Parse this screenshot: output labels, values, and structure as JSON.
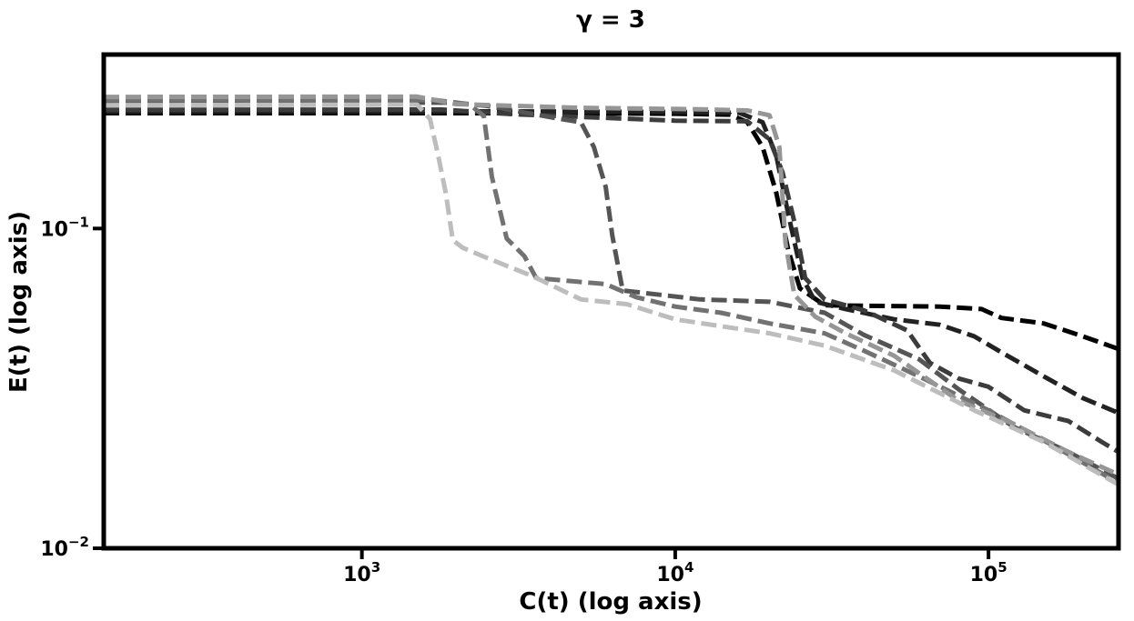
{
  "chart_data": {
    "type": "line",
    "title": "γ = 3",
    "xlabel": "C(t) (log axis)",
    "ylabel": "E(t) (log axis)",
    "xscale": "log",
    "yscale": "log",
    "xlim": [
      150,
      260000
    ],
    "ylim": [
      0.01,
      0.35
    ],
    "grid": false,
    "legend": "none",
    "line_style": "dashed",
    "xticks": [
      {
        "value": 1000,
        "base": "10",
        "exp": "3"
      },
      {
        "value": 10000,
        "base": "10",
        "exp": "4"
      },
      {
        "value": 100000,
        "base": "10",
        "exp": "5"
      }
    ],
    "yticks": [
      {
        "value": 0.1,
        "base": "10",
        "exp": "−1"
      },
      {
        "value": 0.01,
        "base": "10",
        "exp": "−2"
      }
    ],
    "series": [
      {
        "color": "#000000",
        "points": [
          [
            150,
            0.2295
          ],
          [
            3000,
            0.2295
          ],
          [
            10000,
            0.2285
          ],
          [
            15000,
            0.227
          ],
          [
            17000,
            0.215
          ],
          [
            19000,
            0.18
          ],
          [
            21000,
            0.13
          ],
          [
            23000,
            0.085
          ],
          [
            25000,
            0.065
          ],
          [
            30000,
            0.0575
          ],
          [
            70000,
            0.057
          ],
          [
            95000,
            0.056
          ],
          [
            110000,
            0.0525
          ],
          [
            150000,
            0.0505
          ],
          [
            200000,
            0.046
          ],
          [
            260000,
            0.042
          ]
        ]
      },
      {
        "color": "#222222",
        "points": [
          [
            150,
            0.2325
          ],
          [
            3000,
            0.2325
          ],
          [
            10000,
            0.2315
          ],
          [
            16000,
            0.23
          ],
          [
            19000,
            0.215
          ],
          [
            21000,
            0.17
          ],
          [
            23000,
            0.11
          ],
          [
            25500,
            0.07
          ],
          [
            28000,
            0.059
          ],
          [
            35000,
            0.056
          ],
          [
            50000,
            0.052
          ],
          [
            70000,
            0.05
          ],
          [
            90000,
            0.046
          ],
          [
            110000,
            0.041
          ],
          [
            150000,
            0.0345
          ],
          [
            200000,
            0.0295
          ],
          [
            260000,
            0.0265
          ]
        ]
      },
      {
        "color": "#3c3c3c",
        "points": [
          [
            150,
            0.235
          ],
          [
            1800,
            0.2355
          ],
          [
            3000,
            0.228
          ],
          [
            10000,
            0.2175
          ],
          [
            17000,
            0.2165
          ],
          [
            20000,
            0.19
          ],
          [
            22000,
            0.15
          ],
          [
            24000,
            0.105
          ],
          [
            26000,
            0.07
          ],
          [
            30000,
            0.06
          ],
          [
            40000,
            0.0555
          ],
          [
            55000,
            0.048
          ],
          [
            65000,
            0.038
          ],
          [
            80000,
            0.034
          ],
          [
            100000,
            0.032
          ],
          [
            130000,
            0.027
          ],
          [
            180000,
            0.025
          ],
          [
            230000,
            0.0215
          ],
          [
            260000,
            0.02
          ]
        ]
      },
      {
        "color": "#555555",
        "points": [
          [
            150,
            0.247
          ],
          [
            1900,
            0.2475
          ],
          [
            2500,
            0.242
          ],
          [
            3200,
            0.232
          ],
          [
            4200,
            0.221
          ],
          [
            5000,
            0.215
          ],
          [
            5500,
            0.18
          ],
          [
            6000,
            0.135
          ],
          [
            6300,
            0.095
          ],
          [
            6800,
            0.064
          ],
          [
            9000,
            0.062
          ],
          [
            12000,
            0.06
          ],
          [
            20000,
            0.059
          ],
          [
            30000,
            0.0545
          ],
          [
            40000,
            0.0465
          ],
          [
            60000,
            0.039
          ],
          [
            80000,
            0.0315
          ],
          [
            120000,
            0.024
          ],
          [
            180000,
            0.02
          ],
          [
            260000,
            0.0165
          ]
        ]
      },
      {
        "color": "#727272",
        "points": [
          [
            150,
            0.252
          ],
          [
            1700,
            0.2525
          ],
          [
            2200,
            0.245
          ],
          [
            2450,
            0.225
          ],
          [
            2600,
            0.145
          ],
          [
            2900,
            0.093
          ],
          [
            3300,
            0.082
          ],
          [
            3600,
            0.07
          ],
          [
            6000,
            0.067
          ],
          [
            7500,
            0.061
          ],
          [
            10000,
            0.057
          ],
          [
            14000,
            0.0545
          ],
          [
            20000,
            0.0505
          ],
          [
            30000,
            0.047
          ],
          [
            40000,
            0.0415
          ],
          [
            60000,
            0.0345
          ],
          [
            100000,
            0.027
          ],
          [
            160000,
            0.021
          ],
          [
            260000,
            0.016
          ]
        ]
      },
      {
        "color": "#969696",
        "points": [
          [
            150,
            0.258
          ],
          [
            1500,
            0.2585
          ],
          [
            2000,
            0.245
          ],
          [
            5000,
            0.2385
          ],
          [
            12000,
            0.236
          ],
          [
            17000,
            0.234
          ],
          [
            20000,
            0.226
          ],
          [
            21500,
            0.18
          ],
          [
            22500,
            0.09
          ],
          [
            24000,
            0.062
          ],
          [
            28000,
            0.053
          ],
          [
            35000,
            0.047
          ],
          [
            50000,
            0.04
          ],
          [
            80000,
            0.029
          ],
          [
            120000,
            0.0245
          ],
          [
            180000,
            0.02
          ],
          [
            260000,
            0.017
          ]
        ]
      },
      {
        "color": "#bdbdbd",
        "points": [
          [
            150,
            0.243
          ],
          [
            1500,
            0.244
          ],
          [
            1650,
            0.22
          ],
          [
            1750,
            0.17
          ],
          [
            1850,
            0.13
          ],
          [
            1950,
            0.092
          ],
          [
            2100,
            0.087
          ],
          [
            2500,
            0.081
          ],
          [
            3500,
            0.071
          ],
          [
            5000,
            0.06
          ],
          [
            7000,
            0.058
          ],
          [
            10000,
            0.052
          ],
          [
            15000,
            0.049
          ],
          [
            20000,
            0.047
          ],
          [
            30000,
            0.043
          ],
          [
            50000,
            0.036
          ],
          [
            90000,
            0.027
          ],
          [
            150000,
            0.0215
          ],
          [
            260000,
            0.0158
          ]
        ]
      }
    ]
  }
}
